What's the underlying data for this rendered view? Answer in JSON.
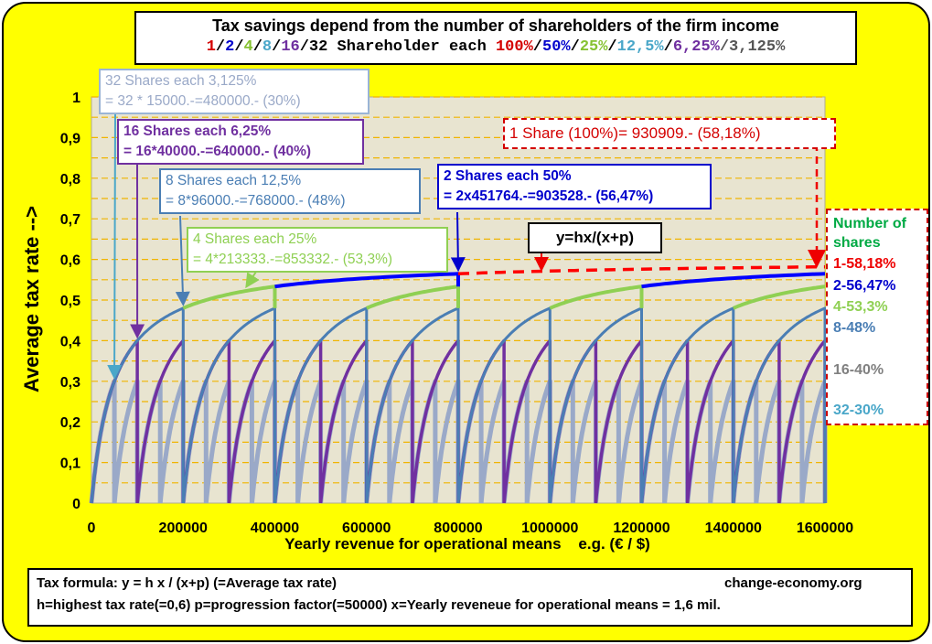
{
  "title": {
    "line1": "Tax savings depend from the number of shareholders of the firm income",
    "line2_parts": [
      {
        "text": "1",
        "color": "#d40000"
      },
      {
        "text": "/",
        "color": "#000000"
      },
      {
        "text": "2",
        "color": "#0000cc"
      },
      {
        "text": "/",
        "color": "#000000"
      },
      {
        "text": "4",
        "color": "#86c232"
      },
      {
        "text": "/",
        "color": "#000000"
      },
      {
        "text": "8",
        "color": "#4aa7c9"
      },
      {
        "text": "/",
        "color": "#000000"
      },
      {
        "text": "16",
        "color": "#7030a0"
      },
      {
        "text": "/32 Shareholder each ",
        "color": "#000000"
      },
      {
        "text": "100%",
        "color": "#d40000"
      },
      {
        "text": "/",
        "color": "#000000"
      },
      {
        "text": "50%",
        "color": "#0000cc"
      },
      {
        "text": "/",
        "color": "#000000"
      },
      {
        "text": "25%",
        "color": "#86c232"
      },
      {
        "text": "/",
        "color": "#000000"
      },
      {
        "text": "12,5%",
        "color": "#4aa7c9"
      },
      {
        "text": "/",
        "color": "#000000"
      },
      {
        "text": "6,25%",
        "color": "#7030a0"
      },
      {
        "text": "/3,125%",
        "color": "#555555"
      }
    ]
  },
  "annotations": {
    "a32": {
      "line1": "32 Shares each 3,125%",
      "line2": "= 32 * 15000.-=480000.- (30%)",
      "color": "#9aa9c8"
    },
    "a16": {
      "line1": "16 Shares each 6,25%",
      "line2": "= 16*40000.-=640000.- (40%)",
      "color": "#7030a0"
    },
    "a8": {
      "line1": "8 Shares each 12,5%",
      "line2": "= 8*96000.-=768000.- (48%)",
      "color": "#4a7eb4"
    },
    "a4": {
      "line1": "4 Shares each 25%",
      "line2": "= 4*213333.-=853332.- (53,3%)",
      "color": "#8fd053"
    },
    "a2": {
      "line1": "2 Shares each 50%",
      "line2": "= 2x451764.-=903528.- (56,47%)",
      "color": "#0000cc"
    },
    "a1": {
      "line1": "1 Share (100%)= 930909.- (58,18%)",
      "color": "#d40000"
    },
    "formula": {
      "text": "y=hx/(x+p)"
    }
  },
  "legend": {
    "title": "Number of shares",
    "items": [
      {
        "label": "1-58,18%",
        "color": "#ee0000"
      },
      {
        "label": "2-56,47%",
        "color": "#0000cc"
      },
      {
        "label": "4-53,3%",
        "color": "#8fd053"
      },
      {
        "label": "8-48%",
        "color": "#4a7eb4"
      },
      {
        "label": "16-40%",
        "color": "#808080"
      },
      {
        "label": "32-30%",
        "color": "#4aa7c9"
      }
    ]
  },
  "footer": {
    "line1": "Tax formula: y = h x / (x+p)  (=Average tax rate)",
    "site": "change-economy.org",
    "line2": "h=highest tax rate(=0,6) p=progression factor(=50000) x=Yearly reveneue for operational means = 1,6 mil."
  },
  "chart_data": {
    "type": "line",
    "xlabel": "Yearly revenue for operational means    e.g. (€ / $)",
    "ylabel": "Average tax rate -->",
    "xlim": [
      0,
      1600000
    ],
    "ylim": [
      0,
      1
    ],
    "x_ticks": [
      "0",
      "200000",
      "400000",
      "600000",
      "800000",
      "1000000",
      "1200000",
      "1400000",
      "1600000"
    ],
    "y_ticks": [
      "0",
      "0,1",
      "0,2",
      "0,3",
      "0,4",
      "0,5",
      "0,6",
      "0,7",
      "0,8",
      "0,9",
      "1"
    ],
    "grid": "horizontal dashed",
    "formula": {
      "h": 0.6,
      "p": 50000
    },
    "series": [
      {
        "shares": 32,
        "segment_width": 50000,
        "peak": 0.3,
        "color": "#9aa9c8"
      },
      {
        "shares": 16,
        "segment_width": 100000,
        "peak": 0.4,
        "color": "#7030a0"
      },
      {
        "shares": 8,
        "segment_width": 200000,
        "peak": 0.48,
        "color": "#4a7eb4"
      },
      {
        "shares": 4,
        "segment_width": 400000,
        "peak": 0.5333,
        "color": "#8fd053"
      },
      {
        "shares": 2,
        "segment_width": 800000,
        "peak": 0.5647,
        "color": "#0000ff"
      },
      {
        "shares": 1,
        "segment_width": 1600000,
        "peak": 0.5818,
        "color": "#ff0000"
      }
    ]
  }
}
